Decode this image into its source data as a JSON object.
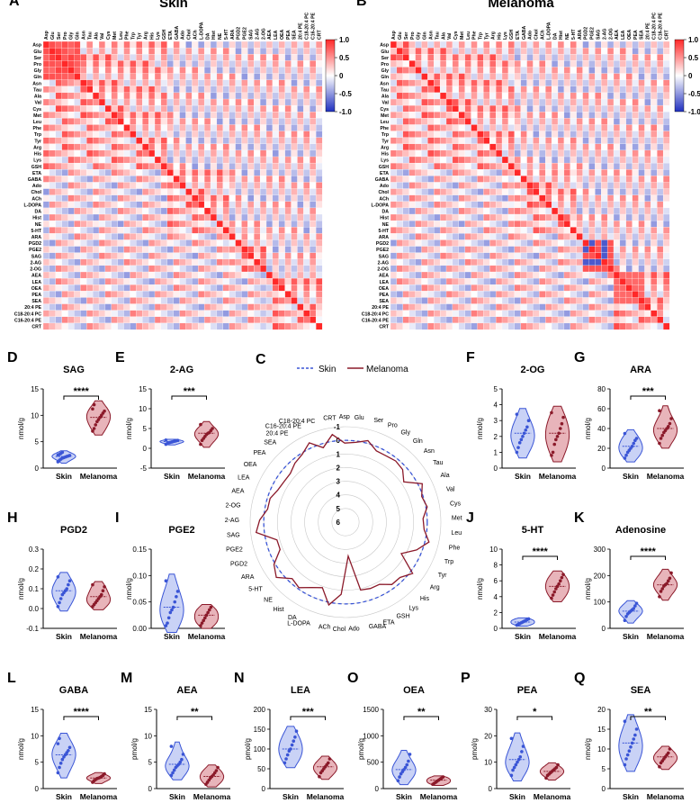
{
  "colors": {
    "skin": "#3a55d6",
    "skin_fill": "#c9d2f6",
    "melanoma": "#8b1a2a",
    "melanoma_fill": "#e8b4ba",
    "pos": "#c8102e",
    "neg": "#1f2fbf"
  },
  "heatmaps": {
    "labels": [
      "Asp",
      "Glu",
      "Ser",
      "Pro",
      "Gly",
      "Gln",
      "Asn",
      "Tau",
      "Ala",
      "Val",
      "Cys",
      "Met",
      "Leu",
      "Phe",
      "Trp",
      "Tyr",
      "Arg",
      "His",
      "Lys",
      "GSH",
      "ETA",
      "GABA",
      "Ado",
      "Chol",
      "ACh",
      "L-DOPA",
      "DA",
      "Hist",
      "NE",
      "5-HT",
      "ARA",
      "PGD2",
      "PGE2",
      "SAG",
      "2-AG",
      "2-OG",
      "AEA",
      "LEA",
      "OEA",
      "PEA",
      "SEA",
      "20:4 PE",
      "C18-20:4 PC",
      "C16-20:4 PE",
      "CRT"
    ],
    "colorbar_ticks": [
      "1.0",
      "0.5",
      "0",
      "-0.5",
      "-1.0"
    ],
    "panels": [
      {
        "letter": "A",
        "title": "Skin"
      },
      {
        "letter": "B",
        "title": "Melanoma"
      }
    ]
  },
  "radar": {
    "letter": "C",
    "legend": [
      "Skin",
      "Melanoma"
    ],
    "rings": [
      "-1",
      "0",
      "1",
      "2",
      "3",
      "4",
      "5",
      "6"
    ],
    "labels": [
      "CRT",
      "Asp",
      "Glu",
      "Ser",
      "Pro",
      "Gly",
      "Gln",
      "Asn",
      "Tau",
      "Ala",
      "Val",
      "Cys",
      "Met",
      "Leu",
      "Phe",
      "Trp",
      "Tyr",
      "Arg",
      "His",
      "Lys",
      "GSH",
      "ETA",
      "GABA",
      "Ado",
      "Chol",
      "ACh",
      "L-DOPA",
      "DA",
      "Hist",
      "NE",
      "5-HT",
      "ARA",
      "PGD2",
      "PGE2",
      "SAG",
      "2-AG",
      "2-OG",
      "AEA",
      "LEA",
      "OEA",
      "PEA",
      "SEA",
      "20:4 PE",
      "C16-20:4 PE",
      "C18-20:4 PC"
    ],
    "melanoma_values": [
      -0.5,
      0.2,
      0.1,
      -0.2,
      0.3,
      0.3,
      0.2,
      0.3,
      0.8,
      -0.3,
      0.1,
      -0.1,
      0.3,
      0.2,
      -0.3,
      0.4,
      1.3,
      -0.2,
      0.3,
      0.3,
      0.8,
      0.8,
      0.9,
      3.5,
      0.7,
      -0.2,
      0.9,
      0.6,
      0.1,
      0.3,
      -0.5,
      -0.1,
      0.8,
      0.8,
      -0.6,
      -0.3,
      0.2,
      0.2,
      0.5,
      0.6,
      0.6,
      0.3,
      0.1,
      -0.4,
      0.3
    ]
  },
  "violins": [
    {
      "letter": "D",
      "title": "SAG",
      "ylabel": "nmol/g",
      "yticks": [
        "0",
        "5",
        "10",
        "15"
      ],
      "ymin": 0,
      "ymax": 15,
      "sig": "****",
      "groups": [
        "Skin",
        "Melanoma"
      ],
      "skin": [
        1.2,
        1.5,
        1.7,
        1.9,
        2.0,
        2.1,
        2.2,
        2.3,
        2.4,
        2.5,
        2.6,
        2.8,
        3.0
      ],
      "melanoma": [
        7.0,
        7.5,
        8.2,
        8.8,
        9.2,
        9.6,
        10.0,
        10.4,
        10.8,
        11.2,
        12.0
      ]
    },
    {
      "letter": "E",
      "title": "2-AG",
      "ylabel": "nmol/g",
      "yticks": [
        "-5",
        "0",
        "5",
        "10",
        "15"
      ],
      "ymin": -5,
      "ymax": 15,
      "sig": "***",
      "groups": [
        "Skin",
        "Melanoma"
      ],
      "skin": [
        1.0,
        1.2,
        1.4,
        1.5,
        1.6,
        1.7,
        1.8,
        1.9,
        2.0,
        2.1
      ],
      "melanoma": [
        1.0,
        2.0,
        2.5,
        3.0,
        3.5,
        3.8,
        4.0,
        4.5,
        5.0,
        6.0
      ]
    },
    {
      "letter": "F",
      "title": "2-OG",
      "ylabel": "nmol/g",
      "yticks": [
        "0",
        "1",
        "2",
        "3",
        "4",
        "5"
      ],
      "ymin": 0,
      "ymax": 5,
      "sig": "",
      "groups": [
        "Skin",
        "Melanoma"
      ],
      "skin": [
        1.0,
        1.3,
        1.6,
        1.8,
        2.0,
        2.2,
        2.4,
        2.6,
        3.0,
        3.4
      ],
      "melanoma": [
        0.8,
        1.0,
        1.5,
        1.8,
        2.0,
        2.2,
        2.5,
        2.8,
        3.2,
        3.5
      ]
    },
    {
      "letter": "G",
      "title": "ARA",
      "ylabel": "nmol/g",
      "yticks": [
        "0",
        "20",
        "40",
        "60",
        "80"
      ],
      "ymin": 0,
      "ymax": 80,
      "sig": "***",
      "groups": [
        "Skin",
        "Melanoma"
      ],
      "skin": [
        10,
        13,
        16,
        18,
        20,
        22,
        25,
        28,
        30,
        35
      ],
      "melanoma": [
        25,
        30,
        33,
        36,
        38,
        40,
        42,
        45,
        50,
        58
      ]
    },
    {
      "letter": "H",
      "title": "PGD2",
      "ylabel": "nmol/g",
      "yticks": [
        "-0.1",
        "0.0",
        "0.1",
        "0.2",
        "0.3"
      ],
      "ymin": -0.1,
      "ymax": 0.3,
      "sig": "",
      "groups": [
        "Skin",
        "Melanoma"
      ],
      "skin": [
        0.01,
        0.03,
        0.05,
        0.07,
        0.08,
        0.09,
        0.1,
        0.12,
        0.14,
        0.16
      ],
      "melanoma": [
        0.01,
        0.02,
        0.03,
        0.04,
        0.05,
        0.06,
        0.07,
        0.09,
        0.11,
        0.12
      ]
    },
    {
      "letter": "I",
      "title": "PGE2",
      "ylabel": "nmol/g",
      "yticks": [
        "0.00",
        "0.05",
        "0.10",
        "0.15"
      ],
      "ymin": 0,
      "ymax": 0.15,
      "sig": "",
      "groups": [
        "Skin",
        "Melanoma"
      ],
      "skin": [
        0.005,
        0.01,
        0.02,
        0.03,
        0.035,
        0.04,
        0.05,
        0.06,
        0.07,
        0.09
      ],
      "melanoma": [
        0.005,
        0.01,
        0.015,
        0.02,
        0.025,
        0.03,
        0.035,
        0.04
      ]
    },
    {
      "letter": "J",
      "title": "5-HT",
      "ylabel": "nmol/g",
      "yticks": [
        "0",
        "2",
        "4",
        "6",
        "8",
        "10"
      ],
      "ymin": 0,
      "ymax": 10,
      "sig": "****",
      "groups": [
        "Skin",
        "Melanoma"
      ],
      "skin": [
        0.4,
        0.5,
        0.6,
        0.7,
        0.8,
        0.9,
        1.0,
        1.1,
        1.2
      ],
      "melanoma": [
        3.8,
        4.2,
        4.6,
        5.0,
        5.3,
        5.6,
        6.0,
        6.4,
        6.8
      ]
    },
    {
      "letter": "K",
      "title": "Adenosine",
      "ylabel": "nmol/g",
      "yticks": [
        "0",
        "100",
        "200",
        "300"
      ],
      "ymin": 0,
      "ymax": 300,
      "sig": "****",
      "groups": [
        "Skin",
        "Melanoma"
      ],
      "skin": [
        30,
        45,
        55,
        60,
        65,
        70,
        75,
        85,
        95
      ],
      "melanoma": [
        120,
        140,
        150,
        160,
        165,
        170,
        180,
        190,
        210
      ]
    },
    {
      "letter": "L",
      "title": "GABA",
      "ylabel": "nmol/g",
      "yticks": [
        "0",
        "5",
        "10",
        "15"
      ],
      "ymin": 0,
      "ymax": 15,
      "sig": "****",
      "groups": [
        "Skin",
        "Melanoma"
      ],
      "skin": [
        3.0,
        4.0,
        4.8,
        5.5,
        6.0,
        6.4,
        6.8,
        7.2,
        7.8,
        8.5,
        9.5
      ],
      "melanoma": [
        1.2,
        1.5,
        1.7,
        1.9,
        2.0,
        2.1,
        2.3,
        2.5,
        2.8
      ]
    },
    {
      "letter": "M",
      "title": "AEA",
      "ylabel": "pmol/g",
      "yticks": [
        "0",
        "5",
        "10",
        "15"
      ],
      "ymin": 0,
      "ymax": 15,
      "sig": "**",
      "groups": [
        "Skin",
        "Melanoma"
      ],
      "skin": [
        2.5,
        3.0,
        3.5,
        4.0,
        4.3,
        4.6,
        5.0,
        5.5,
        6.5,
        8.0
      ],
      "melanoma": [
        0.8,
        1.2,
        1.6,
        2.0,
        2.3,
        2.6,
        3.0,
        3.4,
        4.0
      ]
    },
    {
      "letter": "N",
      "title": "LEA",
      "ylabel": "pmol/g",
      "yticks": [
        "0",
        "50",
        "100",
        "150",
        "200"
      ],
      "ymin": 0,
      "ymax": 200,
      "sig": "***",
      "groups": [
        "Skin",
        "Melanoma"
      ],
      "skin": [
        65,
        75,
        85,
        95,
        100,
        110,
        120,
        130,
        145
      ],
      "melanoma": [
        30,
        40,
        45,
        50,
        55,
        60,
        65,
        75
      ]
    },
    {
      "letter": "O",
      "title": "OEA",
      "ylabel": "pmol/g",
      "yticks": [
        "0",
        "500",
        "1000",
        "1500"
      ],
      "ymin": 0,
      "ymax": 1500,
      "sig": "**",
      "groups": [
        "Skin",
        "Melanoma"
      ],
      "skin": [
        150,
        220,
        280,
        320,
        360,
        400,
        450,
        520,
        650
      ],
      "melanoma": [
        80,
        100,
        120,
        140,
        160,
        180,
        200,
        220
      ]
    },
    {
      "letter": "P",
      "title": "PEA",
      "ylabel": "pmol/g",
      "yticks": [
        "0",
        "10",
        "20",
        "30"
      ],
      "ymin": 0,
      "ymax": 30,
      "sig": "*",
      "groups": [
        "Skin",
        "Melanoma"
      ],
      "skin": [
        5,
        7,
        8,
        9,
        10,
        11,
        12,
        14,
        16,
        19
      ],
      "melanoma": [
        4,
        5,
        5.5,
        6,
        6.5,
        7,
        7.5,
        8,
        9
      ]
    },
    {
      "letter": "Q",
      "title": "SEA",
      "ylabel": "nmol/g",
      "yticks": [
        "0",
        "5",
        "10",
        "15",
        "20"
      ],
      "ymin": 0,
      "ymax": 20,
      "sig": "**",
      "groups": [
        "Skin",
        "Melanoma"
      ],
      "skin": [
        6,
        7.5,
        8.5,
        9.5,
        10.5,
        11.5,
        12.5,
        13.5,
        15,
        17
      ],
      "melanoma": [
        5.5,
        6.5,
        7,
        7.5,
        8,
        8.5,
        9,
        10
      ]
    }
  ]
}
